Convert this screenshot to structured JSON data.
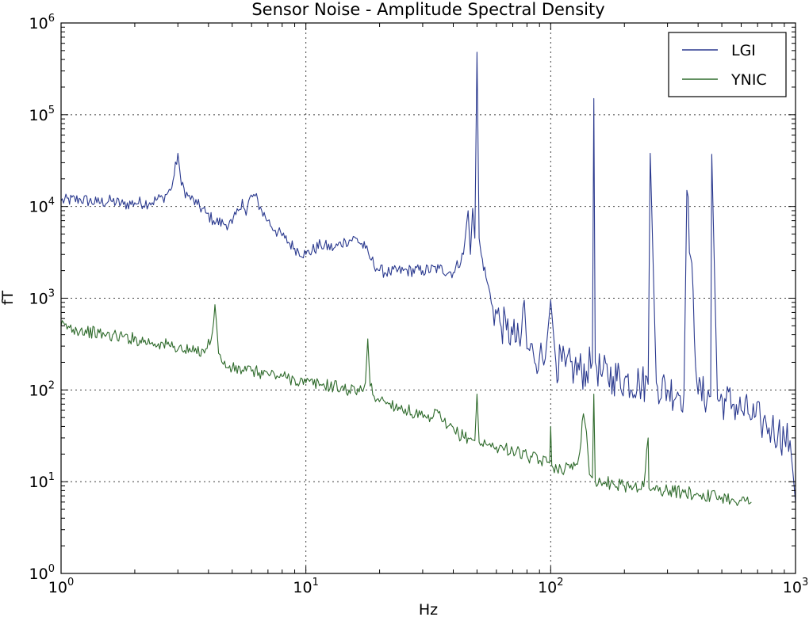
{
  "chart_data": {
    "type": "line",
    "title": "Sensor Noise - Amplitude Spectral Density",
    "xlabel": "Hz",
    "ylabel": "fT",
    "xscale": "log",
    "yscale": "log",
    "xlim": [
      1,
      1000
    ],
    "ylim": [
      1,
      1000000
    ],
    "grid": true,
    "legend_position": "top-right",
    "x_ticks": [
      {
        "value": 1,
        "base": "10",
        "exp": "0"
      },
      {
        "value": 10,
        "base": "10",
        "exp": "1"
      },
      {
        "value": 100,
        "base": "10",
        "exp": "2"
      },
      {
        "value": 1000,
        "base": "10",
        "exp": "3"
      }
    ],
    "y_ticks": [
      {
        "value": 1,
        "base": "10",
        "exp": "0"
      },
      {
        "value": 10,
        "base": "10",
        "exp": "1"
      },
      {
        "value": 100,
        "base": "10",
        "exp": "2"
      },
      {
        "value": 1000,
        "base": "10",
        "exp": "3"
      },
      {
        "value": 10000,
        "base": "10",
        "exp": "4"
      },
      {
        "value": 100000,
        "base": "10",
        "exp": "5"
      },
      {
        "value": 1000000,
        "base": "10",
        "exp": "6"
      }
    ],
    "series": [
      {
        "name": "LGI",
        "color": "#2b3a8f",
        "x": [
          1,
          1.2,
          1.4,
          1.6,
          1.8,
          2.0,
          2.3,
          2.6,
          2.8,
          2.9,
          3.0,
          3.1,
          3.3,
          3.6,
          3.9,
          4.2,
          4.6,
          5.0,
          5.3,
          5.5,
          5.7,
          5.9,
          6.2,
          6.6,
          7.0,
          7.5,
          8.2,
          9.0,
          10,
          11.5,
          13,
          14.5,
          16,
          17.5,
          18.5,
          20,
          22,
          25,
          30,
          35,
          40,
          44,
          46,
          47,
          48,
          49,
          50,
          51,
          52,
          55,
          58,
          62,
          66,
          70,
          75,
          78,
          80,
          85,
          90,
          95,
          100,
          105,
          115,
          125,
          140,
          148,
          150,
          152,
          160,
          180,
          200,
          230,
          250,
          255,
          270,
          300,
          330,
          350,
          360,
          400,
          450,
          455,
          480,
          520,
          560,
          600,
          640,
          680,
          720,
          760,
          800,
          850,
          900,
          950,
          1000
        ],
        "y": [
          11500,
          12000,
          11000,
          11500,
          10500,
          11000,
          11000,
          12500,
          15000,
          22000,
          38000,
          17000,
          13000,
          10500,
          8500,
          7000,
          6500,
          6500,
          9000,
          12000,
          8000,
          12500,
          13000,
          9000,
          7000,
          5500,
          4500,
          3500,
          3000,
          3800,
          3500,
          4200,
          4500,
          3500,
          2600,
          2000,
          1900,
          2000,
          2000,
          2100,
          1900,
          3000,
          9000,
          3000,
          9500,
          4500,
          480000,
          4500,
          3000,
          1500,
          800,
          550,
          450,
          400,
          300,
          950,
          280,
          250,
          230,
          220,
          950,
          200,
          180,
          170,
          160,
          200,
          150000,
          200,
          150,
          140,
          130,
          120,
          115,
          38000,
          120,
          100,
          95,
          90,
          15000,
          90,
          85,
          37000,
          80,
          75,
          70,
          60,
          55,
          50,
          45,
          42,
          38,
          35,
          30,
          28,
          6
        ]
      },
      {
        "name": "YNIC",
        "color": "#2f6b2c",
        "x": [
          1,
          1.2,
          1.5,
          1.8,
          2.1,
          2.5,
          2.9,
          3.2,
          3.5,
          3.9,
          4.1,
          4.25,
          4.4,
          4.6,
          5.0,
          5.5,
          6.0,
          7.0,
          8.0,
          9.0,
          10,
          11.5,
          13,
          15,
          16.5,
          17.5,
          17.9,
          18.3,
          19,
          21,
          24,
          28,
          32,
          34,
          36,
          38,
          42,
          46,
          49,
          50,
          51,
          55,
          60,
          70,
          80,
          90,
          99,
          100,
          101,
          110,
          120,
          130,
          136,
          140,
          144,
          148,
          150,
          152,
          160,
          180,
          200,
          220,
          240,
          250,
          252,
          260,
          300,
          350,
          400,
          450,
          500,
          550,
          600,
          660
        ],
        "y": [
          500,
          450,
          400,
          380,
          350,
          320,
          300,
          270,
          260,
          280,
          350,
          850,
          250,
          190,
          170,
          165,
          160,
          150,
          140,
          130,
          120,
          115,
          110,
          100,
          95,
          120,
          360,
          110,
          85,
          75,
          65,
          55,
          45,
          60,
          45,
          40,
          33,
          30,
          28,
          90,
          27,
          25,
          24,
          22,
          19,
          17,
          16,
          40,
          15,
          14,
          14,
          18,
          55,
          35,
          12,
          11,
          90,
          10,
          10,
          9.5,
          9,
          9,
          8.8,
          30,
          8.5,
          8.3,
          8,
          7.6,
          7.3,
          7,
          6.8,
          6.5,
          6.2,
          6
        ]
      }
    ]
  }
}
